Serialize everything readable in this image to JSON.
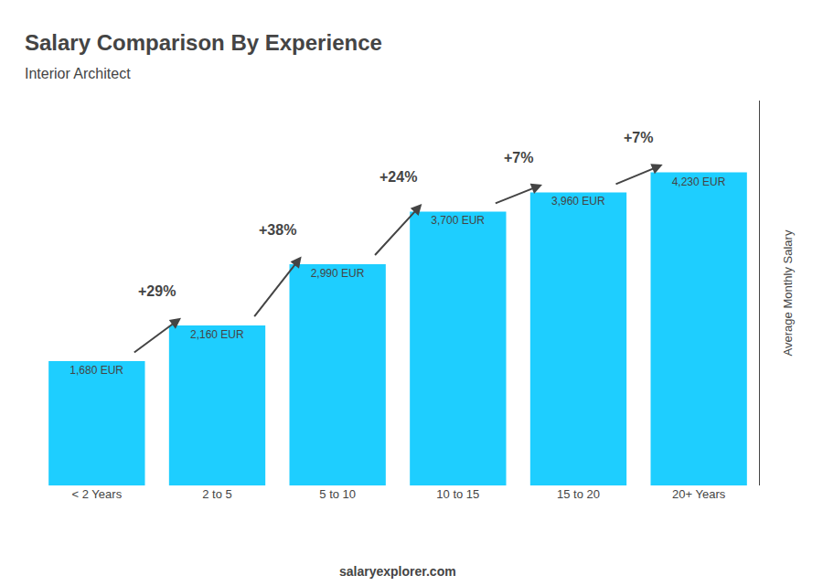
{
  "chart_data": {
    "type": "bar",
    "title": "Salary Comparison By Experience",
    "subtitle": "Interior Architect",
    "ylabel": "Average Monthly Salary",
    "categories": [
      "< 2 Years",
      "2 to 5",
      "5 to 10",
      "10 to 15",
      "15 to 20",
      "20+ Years"
    ],
    "values": [
      1680,
      2160,
      2990,
      3700,
      3960,
      4230
    ],
    "value_labels": [
      "1,680 EUR",
      "2,160 EUR",
      "2,990 EUR",
      "3,700 EUR",
      "3,960 EUR",
      "4,230 EUR"
    ],
    "data_labels": true,
    "color": "#1ECEFF",
    "ylim": [
      0,
      5200
    ],
    "tick_labels": "x",
    "grid": false,
    "annotations": [
      {
        "text": "+29%",
        "from": "< 2 Years",
        "to": "2 to 5"
      },
      {
        "text": "+38%",
        "from": "2 to 5",
        "to": "5 to 10"
      },
      {
        "text": "+24%",
        "from": "5 to 10",
        "to": "10 to 15"
      },
      {
        "text": "+7%",
        "from": "10 to 15",
        "to": "15 to 20"
      },
      {
        "text": "+7%",
        "from": "15 to 20",
        "to": "20+ Years"
      },
      {
        "text": "salary"
      },
      {
        "text": "explorer.com"
      }
    ]
  }
}
